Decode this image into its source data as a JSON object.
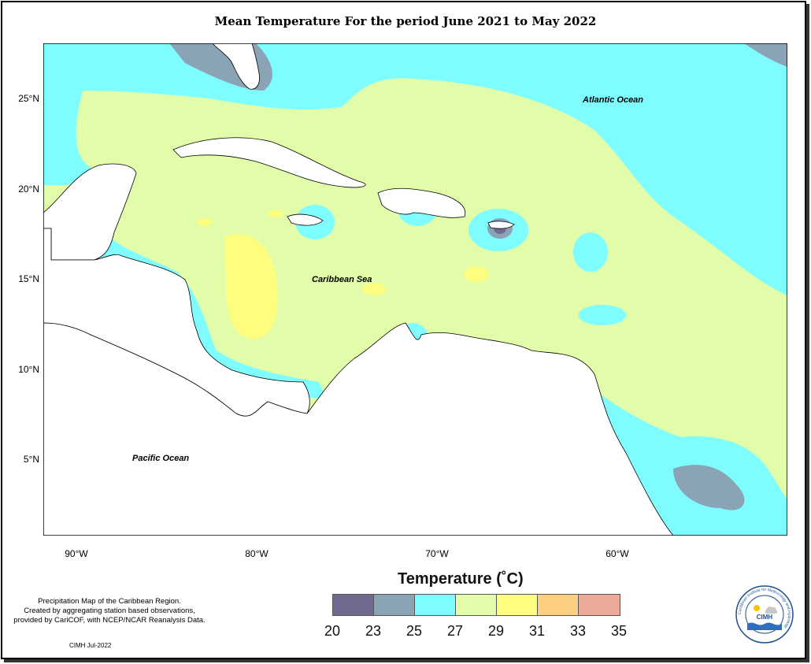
{
  "title": "Mean Temperature For the period June 2021 to May 2022",
  "y_ticks": [
    {
      "label": "25°N",
      "lat": 25
    },
    {
      "label": "20°N",
      "lat": 20
    },
    {
      "label": "15°N",
      "lat": 15
    },
    {
      "label": "10°N",
      "lat": 10
    },
    {
      "label": "5°N",
      "lat": 5
    }
  ],
  "x_ticks": [
    {
      "label": "90°W",
      "lon": -90
    },
    {
      "label": "80°W",
      "lon": -80
    },
    {
      "label": "70°W",
      "lon": -70
    },
    {
      "label": "60°W",
      "lon": -60
    }
  ],
  "labels": {
    "atlantic": "Atlantic Ocean",
    "caribbean": "Caribbean Sea",
    "pacific": "Pacific Ocean"
  },
  "legend": {
    "title": "Temperature (˚C)",
    "colors": [
      "#6e6a90",
      "#8aa3b5",
      "#7ffcff",
      "#e2fdaa",
      "#fdfd80",
      "#fdcf82",
      "#eeaa98"
    ],
    "labels": [
      "20",
      "23",
      "25",
      "27",
      "29",
      "31",
      "33",
      "35"
    ]
  },
  "credit": {
    "line1": "Precipitation Map of the Caribbean Region.",
    "line2": "Created by aggregating station based observations,",
    "line3": "provided by CariCOF, with NCEP/NCAR Reanalysis Data.",
    "footer": "CIMH Jul-2022"
  },
  "logo": {
    "text": "CIMH",
    "ring_text": "Caribbean Institute for Meteorology and Hydrology"
  }
}
